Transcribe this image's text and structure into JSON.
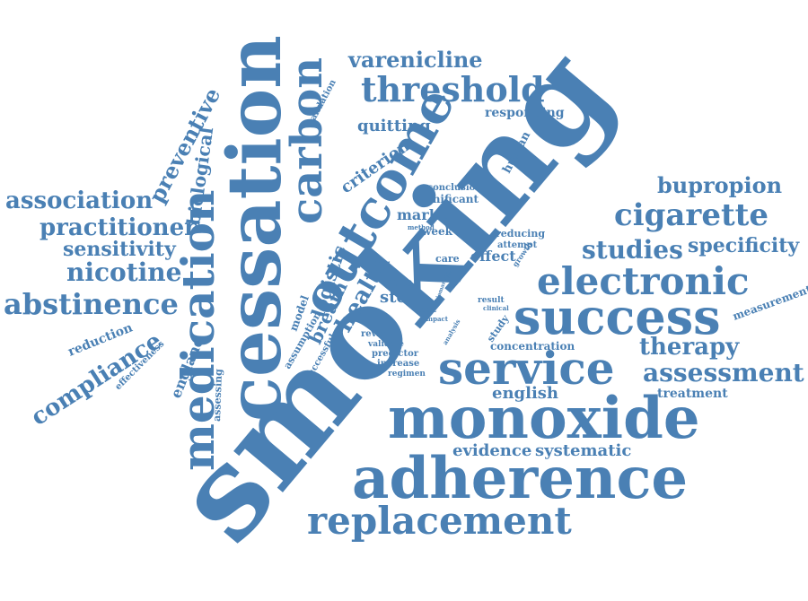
{
  "palette": {
    "word": "#4a80b4",
    "background": "#ffffff"
  },
  "words": [
    "smoking",
    "cessation",
    "outcome",
    "medication",
    "carbon",
    "monoxide",
    "adherence",
    "replacement",
    "success",
    "service",
    "electronic",
    "threshold",
    "varenicline",
    "cigarette",
    "bupropion",
    "studies",
    "specificity",
    "therapy",
    "assessment",
    "treatment",
    "english",
    "evidence",
    "systematic",
    "concentration",
    "measurement",
    "association",
    "practitioner",
    "sensitivity",
    "nicotine",
    "abstinence",
    "compliance",
    "reduction",
    "england",
    "effectiveness",
    "assessing",
    "preventive",
    "biological",
    "health",
    "logistic",
    "breath",
    "model",
    "assumption",
    "successful",
    "validation",
    "quitting",
    "responding",
    "criterion",
    "human",
    "conclusion",
    "significant",
    "marker",
    "method",
    "week",
    "reducing",
    "attempt",
    "effect",
    "growth",
    "rate",
    "care",
    "stop",
    "test",
    "impact",
    "result",
    "clinical",
    "review",
    "validate",
    "predictor",
    "increase",
    "regimen",
    "analysis",
    "study",
    "biomarker",
    "scale",
    "trial"
  ]
}
